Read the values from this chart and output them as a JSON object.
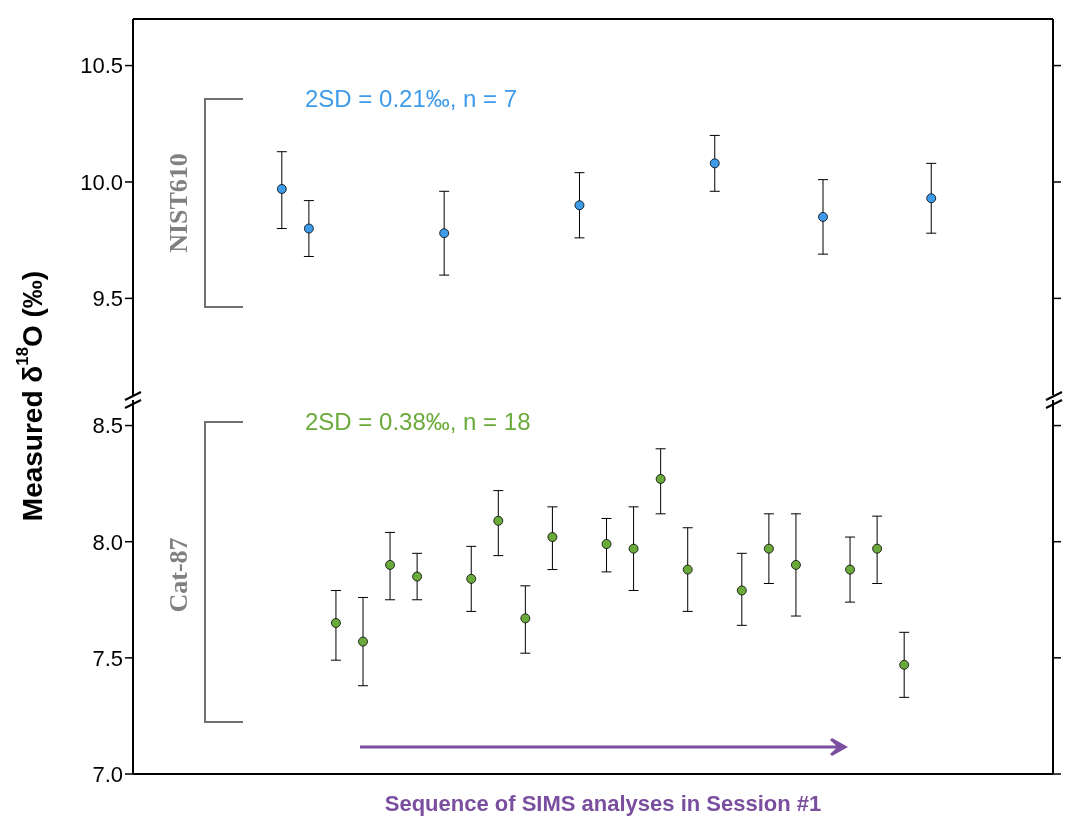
{
  "chart_data": [
    {
      "type": "scatter",
      "ylabel": "Measured δ$^{18}$O (‰)",
      "annotations": [
        "2SD = 0.21‰, n = 7",
        "NIST610"
      ],
      "categories": [
        null,
        null,
        null,
        null,
        null,
        null,
        null,
        null,
        null,
        null,
        null,
        null,
        null,
        null,
        null,
        null,
        null,
        null,
        null,
        null,
        null,
        null,
        null,
        null,
        null,
        null,
        null,
        null,
        null,
        null,
        null,
        null,
        null,
        null
      ],
      "series": [
        {
          "color": "#3d9be9",
          "values": [
            null,
            null,
            null,
            null,
            null,
            9.97,
            9.8,
            null,
            null,
            null,
            null,
            9.78,
            null,
            null,
            null,
            null,
            9.9,
            null,
            null,
            null,
            null,
            10.08,
            null,
            null,
            null,
            9.85,
            null,
            null,
            null,
            9.93,
            null,
            null,
            null,
            null
          ],
          "errors": [
            null,
            null,
            null,
            null,
            null,
            [
              9.8,
              10.13
            ],
            [
              9.68,
              9.92
            ],
            null,
            null,
            null,
            null,
            [
              9.6,
              9.96
            ],
            null,
            null,
            null,
            null,
            [
              9.76,
              10.04
            ],
            null,
            null,
            null,
            null,
            [
              9.96,
              10.2
            ],
            null,
            null,
            null,
            [
              9.69,
              10.01
            ],
            null,
            null,
            null,
            [
              9.78,
              10.08
            ],
            null,
            null,
            null,
            null
          ]
        }
      ],
      "ylim": [
        9.085,
        10.7
      ],
      "yticks": [
        {
          "value": 9.5,
          "label": "9.5"
        },
        {
          "value": 10.0,
          "label": "10.0"
        },
        {
          "value": 10.5,
          "label": "10.5"
        }
      ],
      "marker": "circle",
      "grid": false,
      "legend": false,
      "tick_labels": "y"
    },
    {
      "type": "scatter",
      "xlabel": "Sequence of SIMS analyses in Session #1",
      "annotations": [
        "2SD = 0.38‰, n = 18",
        "Cat-87"
      ],
      "categories": [
        null,
        null,
        null,
        null,
        null,
        null,
        null,
        null,
        null,
        null,
        null,
        null,
        null,
        null,
        null,
        null,
        null,
        null,
        null,
        null,
        null,
        null,
        null,
        null,
        null,
        null,
        null,
        null,
        null,
        null,
        null,
        null,
        null,
        null
      ],
      "series": [
        {
          "color": "#6aaa3a",
          "values": [
            null,
            null,
            null,
            null,
            null,
            null,
            null,
            7.65,
            7.57,
            7.9,
            7.85,
            null,
            7.84,
            8.09,
            7.67,
            8.02,
            null,
            7.99,
            7.97,
            8.27,
            7.88,
            null,
            7.79,
            7.97,
            7.9,
            null,
            7.88,
            7.97,
            7.47,
            null,
            null,
            null,
            null,
            null
          ],
          "errors": [
            null,
            null,
            null,
            null,
            null,
            null,
            null,
            [
              7.49,
              7.79
            ],
            [
              7.38,
              7.76
            ],
            [
              7.75,
              8.04
            ],
            [
              7.75,
              7.95
            ],
            null,
            [
              7.7,
              7.98
            ],
            [
              7.94,
              8.22
            ],
            [
              7.52,
              7.81
            ],
            [
              7.88,
              8.15
            ],
            null,
            [
              7.87,
              8.1
            ],
            [
              7.79,
              8.15
            ],
            [
              8.12,
              8.4
            ],
            [
              7.7,
              8.06
            ],
            null,
            [
              7.64,
              7.95
            ],
            [
              7.82,
              8.12
            ],
            [
              7.68,
              8.12
            ],
            null,
            [
              7.74,
              8.02
            ],
            [
              7.82,
              8.11
            ],
            [
              7.33,
              7.61
            ],
            null,
            null,
            null,
            null,
            null
          ]
        }
      ],
      "ylim": [
        7.0,
        8.61
      ],
      "yticks": [
        {
          "value": 7.0,
          "label": "7.0"
        },
        {
          "value": 7.5,
          "label": "7.5"
        },
        {
          "value": 8.0,
          "label": "8.0"
        },
        {
          "value": 8.5,
          "label": "8.5"
        }
      ],
      "marker": "circle",
      "grid": false,
      "legend": false,
      "tick_labels": "y"
    }
  ]
}
